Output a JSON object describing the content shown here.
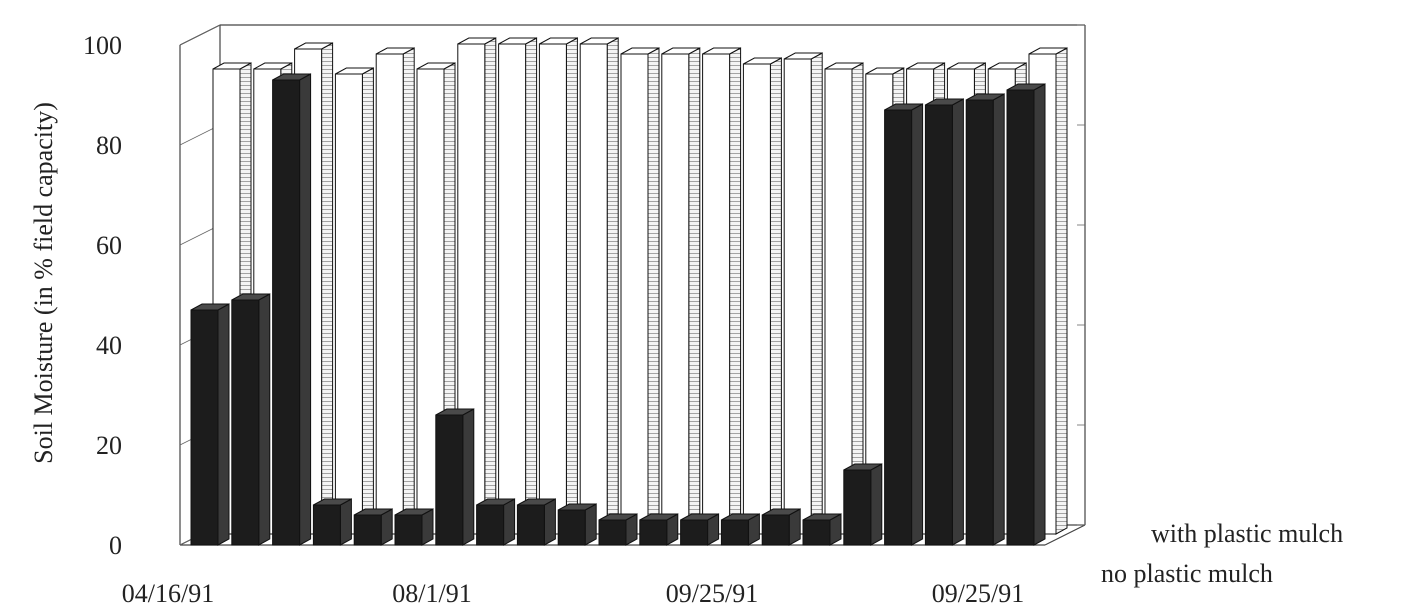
{
  "chart_data": {
    "type": "bar",
    "subtype": "3d-grouped",
    "ylabel": "Soil Moisture (in % field capacity)",
    "ylim": [
      0,
      100
    ],
    "yticks": [
      "0",
      "20",
      "40",
      "60",
      "80",
      "100"
    ],
    "xtick_labels": [
      "04/16/91",
      "08/1/91",
      "09/25/91",
      "09/25/91"
    ],
    "grid": true,
    "legend_placement": "bottom-right",
    "series": [
      {
        "name": "no plastic mulch",
        "color": "#1e1e1e",
        "values": [
          47,
          49,
          93,
          8,
          6,
          6,
          26,
          8,
          8,
          7,
          5,
          5,
          5,
          5,
          6,
          5,
          15,
          87,
          88,
          89,
          91
        ]
      },
      {
        "name": "with plastic mulch",
        "color": "#ffffff",
        "values": [
          93,
          93,
          97,
          92,
          96,
          93,
          98,
          98,
          98,
          98,
          96,
          96,
          96,
          94,
          95,
          93,
          92,
          93,
          93,
          93,
          96
        ]
      }
    ]
  }
}
